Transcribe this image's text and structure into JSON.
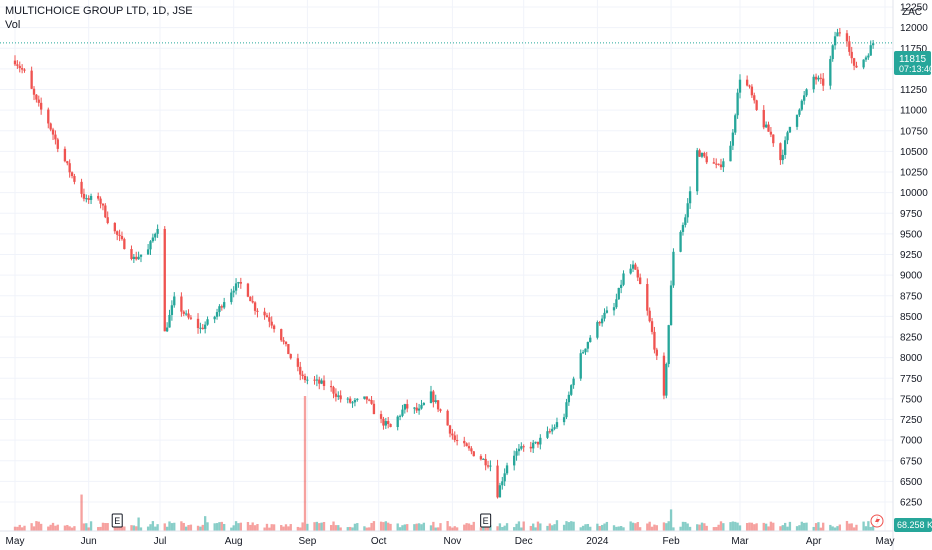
{
  "header": {
    "title": "MULTICHOICE GROUP LTD, 1D, JSE",
    "volume_label": "Vol"
  },
  "currency": "ZAC",
  "last_price": {
    "value": "11815",
    "countdown": "07:13:40",
    "color": "#26a69a"
  },
  "volume_badge": {
    "value": "68.258 K",
    "color": "#26a69a"
  },
  "earnings_marker": "E",
  "colors": {
    "up": "#26a69a",
    "down": "#ef5350",
    "grid": "#f0f3fa",
    "axis_text": "#131722"
  },
  "chart_data": {
    "type": "candlestick",
    "ylim": [
      6050,
      12400
    ],
    "y_ticks": [
      6250,
      6500,
      6750,
      7000,
      7250,
      7500,
      7750,
      8000,
      8250,
      8500,
      8750,
      9000,
      9250,
      9500,
      9750,
      10000,
      10250,
      10500,
      10750,
      11000,
      11250,
      11500,
      11750,
      12000,
      12250
    ],
    "x_ticks": [
      {
        "label": "May",
        "date": "2023-05-01"
      },
      {
        "label": "Jun",
        "date": "2023-06-01"
      },
      {
        "label": "Jul",
        "date": "2023-07-01"
      },
      {
        "label": "Aug",
        "date": "2023-08-01"
      },
      {
        "label": "Sep",
        "date": "2023-09-01"
      },
      {
        "label": "Oct",
        "date": "2023-10-01"
      },
      {
        "label": "Nov",
        "date": "2023-11-01"
      },
      {
        "label": "Dec",
        "date": "2023-12-01"
      },
      {
        "label": "2024",
        "date": "2024-01-01"
      },
      {
        "label": "Feb",
        "date": "2024-02-01"
      },
      {
        "label": "Mar",
        "date": "2024-03-01"
      },
      {
        "label": "Apr",
        "date": "2024-04-01"
      },
      {
        "label": "May",
        "date": "2024-05-01"
      }
    ],
    "earnings_dates": [
      "2023-06-13",
      "2023-11-15"
    ],
    "last_price": 11815,
    "price_path": [
      [
        "2023-05-01",
        11600
      ],
      [
        "2023-05-05",
        11450
      ],
      [
        "2023-05-10",
        11100
      ],
      [
        "2023-05-15",
        10850
      ],
      [
        "2023-05-20",
        10500
      ],
      [
        "2023-05-25",
        10200
      ],
      [
        "2023-05-31",
        9900
      ],
      [
        "2023-06-05",
        9950
      ],
      [
        "2023-06-10",
        9600
      ],
      [
        "2023-06-15",
        9400
      ],
      [
        "2023-06-20",
        9200
      ],
      [
        "2023-06-26",
        9300
      ],
      [
        "2023-06-30",
        9600
      ],
      [
        "2023-07-02",
        8200
      ],
      [
        "2023-07-07",
        8700
      ],
      [
        "2023-07-12",
        8500
      ],
      [
        "2023-07-18",
        8350
      ],
      [
        "2023-07-24",
        8500
      ],
      [
        "2023-07-28",
        8700
      ],
      [
        "2023-08-01",
        8850
      ],
      [
        "2023-08-05",
        8900
      ],
      [
        "2023-08-10",
        8600
      ],
      [
        "2023-08-15",
        8500
      ],
      [
        "2023-08-20",
        8300
      ],
      [
        "2023-08-25",
        8000
      ],
      [
        "2023-08-30",
        7750
      ],
      [
        "2023-09-05",
        7700
      ],
      [
        "2023-09-10",
        7650
      ],
      [
        "2023-09-15",
        7500
      ],
      [
        "2023-09-20",
        7450
      ],
      [
        "2023-09-26",
        7500
      ],
      [
        "2023-10-01",
        7250
      ],
      [
        "2023-10-06",
        7150
      ],
      [
        "2023-10-12",
        7400
      ],
      [
        "2023-10-18",
        7350
      ],
      [
        "2023-10-23",
        7550
      ],
      [
        "2023-10-28",
        7300
      ],
      [
        "2023-11-02",
        7000
      ],
      [
        "2023-11-07",
        6900
      ],
      [
        "2023-11-12",
        6800
      ],
      [
        "2023-11-17",
        6700
      ],
      [
        "2023-11-20",
        6350
      ],
      [
        "2023-11-25",
        6800
      ],
      [
        "2023-12-01",
        6900
      ],
      [
        "2023-12-06",
        6950
      ],
      [
        "2023-12-12",
        7100
      ],
      [
        "2023-12-18",
        7300
      ],
      [
        "2023-12-23",
        7900
      ],
      [
        "2023-12-28",
        8200
      ],
      [
        "2024-01-03",
        8500
      ],
      [
        "2024-01-08",
        8600
      ],
      [
        "2024-01-12",
        9000
      ],
      [
        "2024-01-16",
        9100
      ],
      [
        "2024-01-20",
        8800
      ],
      [
        "2024-01-24",
        8300
      ],
      [
        "2024-01-29",
        7500
      ],
      [
        "2024-02-02",
        9300
      ],
      [
        "2024-02-07",
        9700
      ],
      [
        "2024-02-12",
        10500
      ],
      [
        "2024-02-16",
        10400
      ],
      [
        "2024-02-21",
        10300
      ],
      [
        "2024-02-26",
        10550
      ],
      [
        "2024-03-01",
        11400
      ],
      [
        "2024-03-05",
        11250
      ],
      [
        "2024-03-09",
        10900
      ],
      [
        "2024-03-14",
        10700
      ],
      [
        "2024-03-18",
        10400
      ],
      [
        "2024-03-22",
        10800
      ],
      [
        "2024-03-27",
        11100
      ],
      [
        "2024-04-01",
        11400
      ],
      [
        "2024-04-06",
        11300
      ],
      [
        "2024-04-10",
        11900
      ],
      [
        "2024-04-14",
        12000
      ],
      [
        "2024-04-18",
        11500
      ],
      [
        "2024-04-23",
        11650
      ],
      [
        "2024-04-26",
        11815
      ]
    ],
    "volume_spikes": [
      [
        "2023-05-29",
        0.27
      ],
      [
        "2023-08-31",
        1.0
      ],
      [
        "2023-09-16",
        0.34
      ],
      [
        "2024-02-01",
        0.16
      ],
      [
        "2024-04-06",
        0.29
      ],
      [
        "2023-06-22",
        0.1
      ],
      [
        "2023-07-20",
        0.11
      ],
      [
        "2023-12-15",
        0.08
      ],
      [
        "2024-03-20",
        0.06
      ],
      [
        "2024-04-22",
        0.07
      ]
    ]
  }
}
